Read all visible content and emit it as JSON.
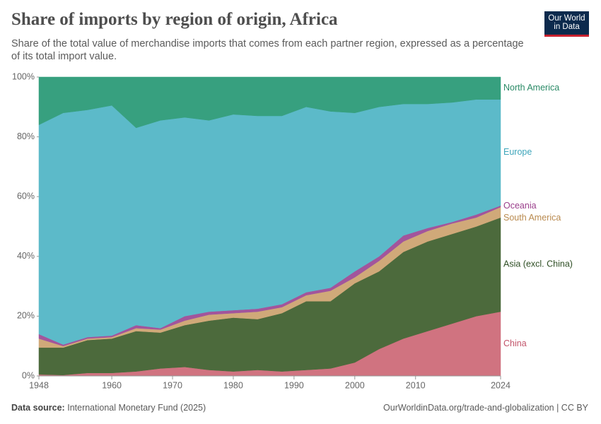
{
  "chart_data": {
    "type": "stacked-area",
    "title": "Share of imports by region of origin, Africa",
    "subtitle": "Share of the total value of merchandise imports that comes from each partner region, expressed as a percentage of its total import value.",
    "logo": "Our World in Data",
    "source_label": "Data source:",
    "source": "International Monetary Fund (2025)",
    "license": "OurWorldinData.org/trade-and-globalization | CC BY",
    "x": [
      1948,
      1952,
      1956,
      1960,
      1964,
      1968,
      1972,
      1976,
      1980,
      1984,
      1988,
      1992,
      1996,
      2000,
      2004,
      2008,
      2012,
      2016,
      2020,
      2024
    ],
    "xlim": [
      1948,
      2024
    ],
    "xticks": [
      1948,
      1960,
      1970,
      1980,
      1990,
      2000,
      2010,
      2024
    ],
    "ylim": [
      0,
      100
    ],
    "yticks": [
      {
        "value": 0,
        "label": "0%"
      },
      {
        "value": 20,
        "label": "20%"
      },
      {
        "value": 40,
        "label": "40%"
      },
      {
        "value": 60,
        "label": "60%"
      },
      {
        "value": 80,
        "label": "80%"
      },
      {
        "value": 100,
        "label": "100%"
      }
    ],
    "series": [
      {
        "name": "China",
        "color": "#d07380",
        "label_color": "#c2546a",
        "values": [
          0.5,
          0.3,
          1,
          1,
          1.5,
          2.5,
          3,
          2,
          1.5,
          2,
          1.5,
          2,
          2.5,
          4.5,
          9,
          12.5,
          15,
          17.5,
          20,
          21.5
        ]
      },
      {
        "name": "Asia (excl. China)",
        "color": "#4c6a3c",
        "label_color": "#2f4f25",
        "values": [
          9,
          9.2,
          11,
          11.5,
          13.5,
          12,
          14,
          16.5,
          18,
          17,
          19.5,
          23,
          22.5,
          26.5,
          26,
          29,
          30,
          30,
          30,
          31.5
        ]
      },
      {
        "name": "South America",
        "color": "#d0a979",
        "label_color": "#b98a4f",
        "values": [
          3,
          0.5,
          0.5,
          0.5,
          1,
          1,
          1.5,
          2,
          1.5,
          2.5,
          2,
          2,
          3.5,
          2,
          3.5,
          3.5,
          3.5,
          3.5,
          3,
          3.5
        ]
      },
      {
        "name": "Oceania",
        "color": "#a2559c",
        "label_color": "#9a3e8b",
        "values": [
          1.5,
          0.5,
          0.5,
          0.5,
          1,
          0.5,
          1.5,
          1,
          1,
          1,
          1,
          1,
          1,
          2,
          1.5,
          2,
          1,
          0.5,
          1,
          0.5
        ]
      },
      {
        "name": "Europe",
        "color": "#5cbac9",
        "label_color": "#3fa6bb",
        "values": [
          70,
          77.5,
          76,
          77,
          66,
          69.5,
          66.5,
          64,
          65.5,
          64.5,
          63,
          62,
          59,
          53,
          50,
          44,
          41.5,
          40,
          38.5,
          35.5
        ]
      },
      {
        "name": "North America",
        "color": "#37a07f",
        "label_color": "#2a8a66",
        "values": [
          16,
          12,
          11,
          9.5,
          17,
          14.5,
          13.5,
          14.5,
          12.5,
          13,
          13,
          10,
          11.5,
          12,
          10,
          9,
          9,
          8.5,
          7.5,
          7.5
        ]
      }
    ]
  }
}
